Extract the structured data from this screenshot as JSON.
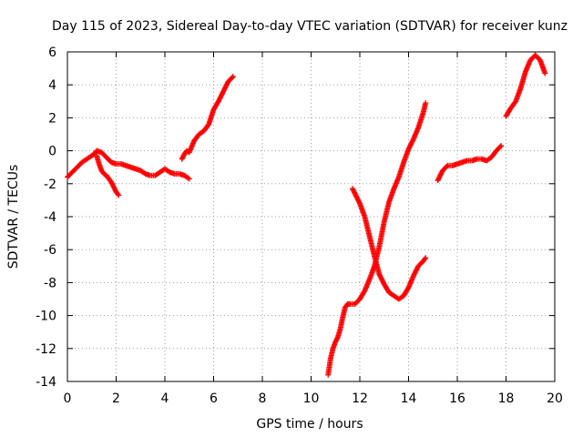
{
  "chart_data": {
    "type": "scatter",
    "title": "Day 115 of 2023, Sidereal Day-to-day VTEC variation (SDTVAR) for receiver kunz",
    "xlabel": "GPS time / hours",
    "ylabel": "SDTVAR / TECUs",
    "xlim": [
      0,
      20
    ],
    "ylim": [
      -14,
      6
    ],
    "xticks": [
      "0",
      "2",
      "4",
      "6",
      "8",
      "10",
      "12",
      "14",
      "16",
      "18",
      "20"
    ],
    "yticks": [
      "6",
      "4",
      "2",
      "0",
      "-2",
      "-4",
      "-6",
      "-8",
      "-10",
      "-12",
      "-14"
    ],
    "grid": true,
    "marker": "plus",
    "color": "#ff0000",
    "series": [
      {
        "x": [
          0.0,
          0.2,
          0.4,
          0.6,
          0.8,
          1.0,
          1.1,
          1.2,
          1.4,
          1.6,
          1.8,
          2.0,
          2.2,
          2.4,
          2.6,
          2.8,
          3.0,
          3.2,
          3.4,
          3.6,
          3.8,
          4.0,
          4.2,
          4.4,
          4.6,
          4.8,
          5.0
        ],
        "y": [
          -1.6,
          -1.3,
          -1.0,
          -0.7,
          -0.5,
          -0.3,
          -0.2,
          0.0,
          -0.1,
          -0.4,
          -0.7,
          -0.8,
          -0.8,
          -0.9,
          -1.0,
          -1.1,
          -1.2,
          -1.4,
          -1.5,
          -1.5,
          -1.3,
          -1.1,
          -1.3,
          -1.4,
          -1.4,
          -1.5,
          -1.7
        ]
      },
      {
        "x": [
          1.2,
          1.3,
          1.4,
          1.5,
          1.6,
          1.7,
          1.8,
          1.9,
          2.0,
          2.1
        ],
        "y": [
          -0.3,
          -0.8,
          -1.2,
          -1.4,
          -1.5,
          -1.7,
          -1.9,
          -2.2,
          -2.5,
          -2.7
        ]
      },
      {
        "x": [
          4.7,
          4.8,
          4.9,
          5.0,
          5.2,
          5.4,
          5.6,
          5.8,
          6.0,
          6.2,
          6.4,
          6.6,
          6.8
        ],
        "y": [
          -0.5,
          -0.2,
          0.0,
          -0.1,
          0.6,
          1.0,
          1.2,
          1.6,
          2.5,
          3.0,
          3.6,
          4.2,
          4.5
        ]
      },
      {
        "x": [
          10.7,
          10.8,
          10.9,
          11.0,
          11.1,
          11.2,
          11.3,
          11.4,
          11.5,
          11.6,
          11.8,
          12.0,
          12.2,
          12.4,
          12.6,
          12.8,
          13.0,
          13.2,
          13.4,
          13.6,
          13.8,
          14.0,
          14.2,
          14.4,
          14.6,
          14.7
        ],
        "y": [
          -13.6,
          -12.6,
          -12.0,
          -11.6,
          -11.3,
          -10.8,
          -10.1,
          -9.5,
          -9.3,
          -9.3,
          -9.3,
          -9.0,
          -8.5,
          -7.8,
          -7.0,
          -5.8,
          -4.3,
          -3.1,
          -2.3,
          -1.6,
          -0.7,
          0.1,
          0.7,
          1.4,
          2.3,
          2.9
        ]
      },
      {
        "x": [
          11.7,
          11.8,
          12.0,
          12.2,
          12.4,
          12.6,
          12.8,
          13.0,
          13.2,
          13.4,
          13.6,
          13.8,
          14.0,
          14.2,
          14.4,
          14.6,
          14.7
        ],
        "y": [
          -2.3,
          -2.6,
          -3.2,
          -4.0,
          -5.2,
          -6.4,
          -7.5,
          -8.1,
          -8.6,
          -8.8,
          -9.0,
          -8.8,
          -8.3,
          -7.6,
          -7.0,
          -6.7,
          -6.5
        ]
      },
      {
        "x": [
          15.2,
          15.4,
          15.6,
          15.8,
          16.0,
          16.2,
          16.4,
          16.6,
          16.8,
          17.0,
          17.2,
          17.4,
          17.6,
          17.8
        ],
        "y": [
          -1.8,
          -1.2,
          -0.9,
          -0.9,
          -0.8,
          -0.7,
          -0.6,
          -0.6,
          -0.5,
          -0.5,
          -0.6,
          -0.4,
          0.0,
          0.3
        ]
      },
      {
        "x": [
          18.0,
          18.2,
          18.4,
          18.6,
          18.8,
          19.0,
          19.2,
          19.4,
          19.6
        ],
        "y": [
          2.1,
          2.6,
          3.0,
          3.8,
          4.8,
          5.5,
          5.8,
          5.5,
          4.7
        ]
      }
    ]
  }
}
